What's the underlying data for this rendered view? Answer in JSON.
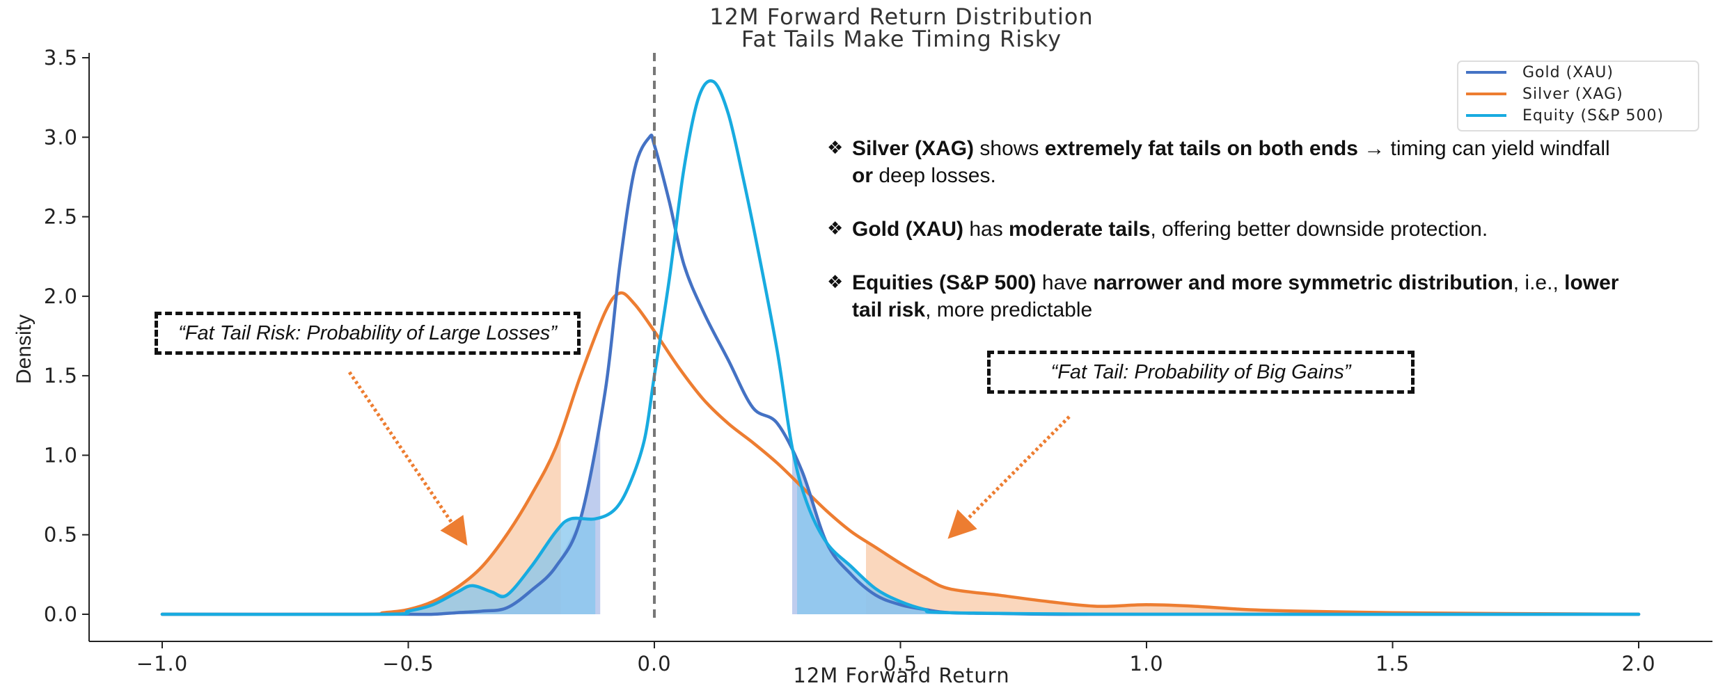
{
  "chart_data": {
    "type": "area",
    "title": "12M Forward Return Distribution",
    "subtitle": "Fat Tails Make Timing Risky",
    "xlabel": "12M Forward Return",
    "ylabel": "Density",
    "xlim": [
      -1.05,
      2.1
    ],
    "ylim": [
      -0.15,
      3.55
    ],
    "xticks": [
      -1.0,
      -0.5,
      0.0,
      0.5,
      1.0,
      1.5,
      2.0
    ],
    "xtick_labels": [
      "−1.0",
      "−0.5",
      "0.0",
      "0.5",
      "1.0",
      "1.5",
      "2.0"
    ],
    "yticks": [
      0.0,
      0.5,
      1.0,
      1.5,
      2.0,
      2.5,
      3.0,
      3.5
    ],
    "ytick_labels": [
      "0.0",
      "0.5",
      "1.0",
      "1.5",
      "2.0",
      "2.5",
      "3.0",
      "3.5"
    ],
    "grid": false,
    "legend_position": "top-right",
    "reference_line": {
      "x": 0.0,
      "style": "dashed",
      "color": "#777777"
    },
    "series": [
      {
        "name": "Gold (XAU)",
        "color": "#4472C4",
        "fill_color": "#A9BCE8",
        "x": [
          -1.0,
          -0.6,
          -0.5,
          -0.45,
          -0.4,
          -0.35,
          -0.3,
          -0.25,
          -0.2,
          -0.15,
          -0.1,
          -0.07,
          -0.04,
          -0.01,
          0.0,
          0.03,
          0.06,
          0.1,
          0.15,
          0.2,
          0.25,
          0.3,
          0.35,
          0.4,
          0.45,
          0.5,
          0.55,
          0.6,
          0.7,
          0.8,
          1.0,
          2.0
        ],
        "y": [
          0.0,
          0.0,
          0.0,
          0.0,
          0.01,
          0.02,
          0.04,
          0.15,
          0.3,
          0.6,
          1.4,
          2.2,
          2.8,
          3.0,
          2.95,
          2.6,
          2.2,
          1.9,
          1.6,
          1.3,
          1.2,
          0.9,
          0.45,
          0.25,
          0.12,
          0.06,
          0.03,
          0.01,
          0.005,
          0.0,
          0.0,
          0.0
        ],
        "shaded_tails": [
          [
            -0.5,
            -0.11
          ],
          [
            0.28,
            2.0
          ]
        ]
      },
      {
        "name": "Silver (XAG)",
        "color": "#ED7D31",
        "fill_color": "#F8C9A7",
        "x": [
          -1.0,
          -0.6,
          -0.55,
          -0.5,
          -0.45,
          -0.4,
          -0.35,
          -0.3,
          -0.25,
          -0.2,
          -0.15,
          -0.1,
          -0.07,
          -0.04,
          0.0,
          0.05,
          0.1,
          0.15,
          0.2,
          0.25,
          0.3,
          0.35,
          0.4,
          0.45,
          0.5,
          0.55,
          0.6,
          0.7,
          0.8,
          0.9,
          1.0,
          1.1,
          1.2,
          1.3,
          1.5,
          1.7,
          2.0
        ],
        "y": [
          0.0,
          0.0,
          0.01,
          0.03,
          0.08,
          0.17,
          0.3,
          0.5,
          0.75,
          1.05,
          1.5,
          1.9,
          2.02,
          1.95,
          1.78,
          1.55,
          1.35,
          1.2,
          1.08,
          0.95,
          0.8,
          0.65,
          0.52,
          0.42,
          0.32,
          0.23,
          0.16,
          0.12,
          0.08,
          0.05,
          0.06,
          0.05,
          0.03,
          0.02,
          0.01,
          0.005,
          0.0
        ],
        "shaded_tails": [
          [
            -0.6,
            -0.19
          ],
          [
            0.43,
            2.0
          ]
        ]
      },
      {
        "name": "Equity (S&P 500)",
        "color": "#18ABE0",
        "fill_color": "#86C5EE",
        "x": [
          -1.0,
          -0.55,
          -0.5,
          -0.45,
          -0.4,
          -0.37,
          -0.33,
          -0.3,
          -0.25,
          -0.2,
          -0.17,
          -0.12,
          -0.08,
          -0.05,
          -0.02,
          0.0,
          0.03,
          0.06,
          0.09,
          0.12,
          0.15,
          0.18,
          0.21,
          0.25,
          0.28,
          0.31,
          0.35,
          0.4,
          0.45,
          0.5,
          0.55,
          0.6,
          1.0,
          2.0
        ],
        "y": [
          0.0,
          0.0,
          0.02,
          0.06,
          0.14,
          0.18,
          0.14,
          0.12,
          0.3,
          0.52,
          0.6,
          0.6,
          0.66,
          0.82,
          1.1,
          1.5,
          2.1,
          2.8,
          3.25,
          3.35,
          3.15,
          2.75,
          2.3,
          1.65,
          1.05,
          0.7,
          0.45,
          0.3,
          0.16,
          0.08,
          0.03,
          0.01,
          0.0,
          0.0
        ],
        "shaded_tails": [
          [
            -0.5,
            -0.12
          ],
          [
            0.29,
            2.0
          ]
        ]
      }
    ]
  },
  "annotations": {
    "left_callout": "“Fat Tail Risk: Probability of Large Losses”",
    "right_callout": "“Fat Tail: Probability of Big Gains”",
    "arrow_color": "#ED7D31",
    "bullet_glyph": "❖",
    "notes": [
      [
        {
          "text": "Silver (XAG)",
          "bold": true
        },
        {
          "text": " shows ",
          "bold": false
        },
        {
          "text": "extremely fat tails on both ends",
          "bold": true
        },
        {
          "text": " → timing can yield windfall ",
          "bold": false
        },
        {
          "text": "or",
          "bold": true
        },
        {
          "text": " deep losses.",
          "bold": false
        }
      ],
      [
        {
          "text": "Gold (XAU)",
          "bold": true
        },
        {
          "text": " has ",
          "bold": false
        },
        {
          "text": "moderate tails",
          "bold": true
        },
        {
          "text": ", offering better downside protection.",
          "bold": false
        }
      ],
      [
        {
          "text": "Equities (S&P 500)",
          "bold": true
        },
        {
          "text": " have ",
          "bold": false
        },
        {
          "text": "narrower and more symmetric distribution",
          "bold": true
        },
        {
          "text": ", i.e., ",
          "bold": false
        },
        {
          "text": "lower tail risk",
          "bold": true
        },
        {
          "text": ", more predictable",
          "bold": false
        }
      ]
    ]
  }
}
